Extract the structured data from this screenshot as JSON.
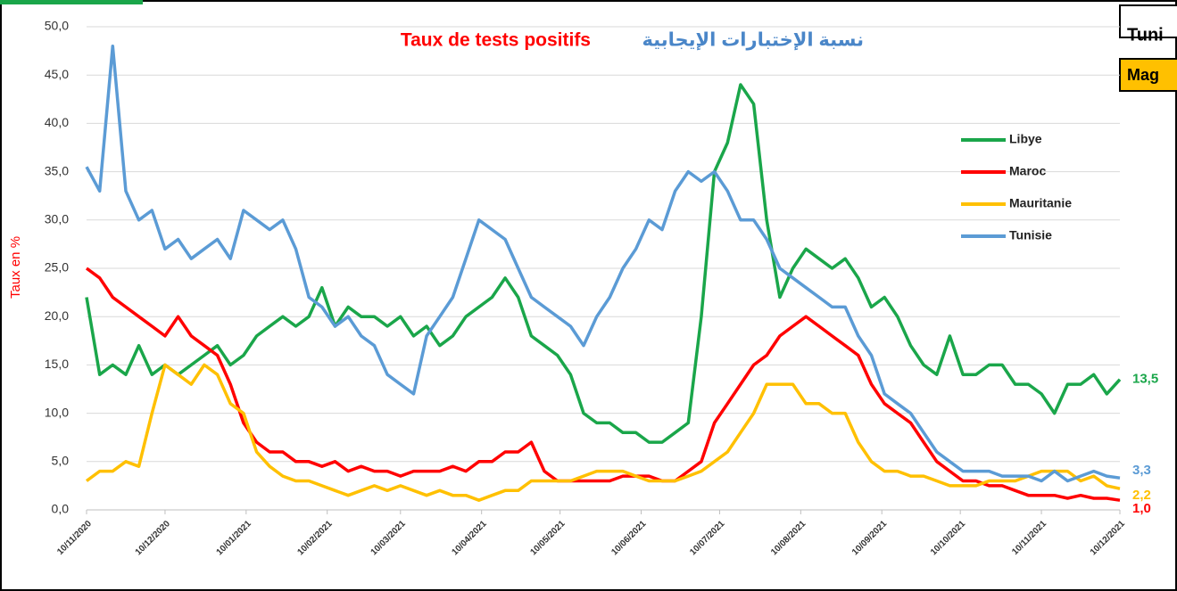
{
  "chart_data": {
    "type": "line",
    "title": "Taux de tests positifs",
    "subtitle": "نسبة الإختبارات الإيجابية",
    "y_label": "Taux en %",
    "corner_texts": [
      "Tuni",
      "Mag"
    ],
    "x": [
      "10/11/2020",
      "15/11/2020",
      "20/11/2020",
      "25/11/2020",
      "30/11/2020",
      "05/12/2020",
      "10/12/2020",
      "15/12/2020",
      "20/12/2020",
      "25/12/2020",
      "30/12/2020",
      "04/01/2021",
      "09/01/2021",
      "14/01/2021",
      "19/01/2021",
      "24/01/2021",
      "29/01/2021",
      "03/02/2021",
      "08/02/2021",
      "13/02/2021",
      "18/02/2021",
      "23/02/2021",
      "28/02/2021",
      "05/03/2021",
      "10/03/2021",
      "15/03/2021",
      "20/03/2021",
      "25/03/2021",
      "30/03/2021",
      "04/04/2021",
      "09/04/2021",
      "14/04/2021",
      "19/04/2021",
      "24/04/2021",
      "29/04/2021",
      "04/05/2021",
      "09/05/2021",
      "14/05/2021",
      "19/05/2021",
      "24/05/2021",
      "29/05/2021",
      "03/06/2021",
      "08/06/2021",
      "13/06/2021",
      "18/06/2021",
      "23/06/2021",
      "28/06/2021",
      "03/07/2021",
      "08/07/2021",
      "13/07/2021",
      "18/07/2021",
      "23/07/2021",
      "28/07/2021",
      "02/08/2021",
      "07/08/2021",
      "12/08/2021",
      "17/08/2021",
      "22/08/2021",
      "27/08/2021",
      "01/09/2021",
      "06/09/2021",
      "11/09/2021",
      "16/09/2021",
      "21/09/2021",
      "26/09/2021",
      "01/10/2021",
      "06/10/2021",
      "11/10/2021",
      "16/10/2021",
      "21/10/2021",
      "26/10/2021",
      "31/10/2021",
      "05/11/2021",
      "10/11/2021",
      "15/11/2021",
      "20/11/2021",
      "25/11/2021",
      "30/11/2021",
      "05/12/2021",
      "10/12/2021"
    ],
    "series": [
      {
        "name": "Libye",
        "color": "#1aa64a",
        "end_label": "13,5",
        "values": [
          22,
          14,
          15,
          14,
          17,
          14,
          15,
          14,
          15,
          16,
          17,
          15,
          16,
          18,
          19,
          20,
          19,
          20,
          23,
          19,
          21,
          20,
          20,
          19,
          20,
          18,
          19,
          17,
          18,
          20,
          21,
          22,
          24,
          22,
          18,
          17,
          16,
          14,
          10,
          9,
          9,
          8,
          8,
          7,
          7,
          8,
          9,
          20,
          35,
          38,
          44,
          42,
          30,
          22,
          25,
          27,
          26,
          25,
          26,
          24,
          21,
          22,
          20,
          17,
          15,
          14,
          18,
          14,
          14,
          15,
          15,
          13,
          13,
          12,
          10,
          13,
          13,
          14,
          12,
          13.5
        ]
      },
      {
        "name": "Maroc",
        "color": "#ff0000",
        "end_label": "1,0",
        "values": [
          25,
          24,
          22,
          21,
          20,
          19,
          18,
          20,
          18,
          17,
          16,
          13,
          9,
          7,
          6,
          6,
          5,
          5,
          4.5,
          5,
          4,
          4.5,
          4,
          4,
          3.5,
          4,
          4,
          4,
          4.5,
          4,
          5,
          5,
          6,
          6,
          7,
          4,
          3,
          3,
          3,
          3,
          3,
          3.5,
          3.5,
          3.5,
          3,
          3,
          4,
          5,
          9,
          11,
          13,
          15,
          16,
          18,
          19,
          20,
          19,
          18,
          17,
          16,
          13,
          11,
          10,
          9,
          7,
          5,
          4,
          3,
          3,
          2.5,
          2.5,
          2,
          1.5,
          1.5,
          1.5,
          1.2,
          1.5,
          1.2,
          1.2,
          1.0
        ]
      },
      {
        "name": "Mauritanie",
        "color": "#ffc000",
        "end_label": "2,2",
        "values": [
          3,
          4,
          4,
          5,
          4.5,
          10,
          15,
          14,
          13,
          15,
          14,
          11,
          10,
          6,
          4.5,
          3.5,
          3,
          3,
          2.5,
          2,
          1.5,
          2,
          2.5,
          2,
          2.5,
          2,
          1.5,
          2,
          1.5,
          1.5,
          1,
          1.5,
          2,
          2,
          3,
          3,
          3,
          3,
          3.5,
          4,
          4,
          4,
          3.5,
          3,
          3,
          3,
          3.5,
          4,
          5,
          6,
          8,
          10,
          13,
          13,
          13,
          11,
          11,
          10,
          10,
          7,
          5,
          4,
          4,
          3.5,
          3.5,
          3,
          2.5,
          2.5,
          2.5,
          3,
          3,
          3,
          3.5,
          4,
          4,
          4,
          3,
          3.5,
          2.5,
          2.2
        ]
      },
      {
        "name": "Tunisie",
        "color": "#5b9bd5",
        "end_label": "3,3",
        "values": [
          35.5,
          33,
          48,
          33,
          30,
          31,
          27,
          28,
          26,
          27,
          28,
          26,
          31,
          30,
          29,
          30,
          27,
          22,
          21,
          19,
          20,
          18,
          17,
          14,
          13,
          12,
          18,
          20,
          22,
          26,
          30,
          29,
          28,
          25,
          22,
          21,
          20,
          19,
          17,
          20,
          22,
          25,
          27,
          30,
          29,
          33,
          35,
          34,
          35,
          33,
          30,
          30,
          28,
          25,
          24,
          23,
          22,
          21,
          21,
          18,
          16,
          12,
          11,
          10,
          8,
          6,
          5,
          4,
          4,
          4,
          3.5,
          3.5,
          3.5,
          3,
          4,
          3,
          3.5,
          4,
          3.5,
          3.3
        ]
      }
    ],
    "xlim": [
      "10/11/2020",
      "10/12/2021"
    ],
    "xticks": [
      "10/11/2020",
      "10/12/2020",
      "10/01/2021",
      "10/02/2021",
      "10/03/2021",
      "10/04/2021",
      "10/05/2021",
      "10/06/2021",
      "10/07/2021",
      "10/08/2021",
      "10/09/2021",
      "10/10/2021",
      "10/11/2021",
      "10/12/2021"
    ],
    "ylim": [
      0,
      50
    ],
    "yticks": [
      {
        "value": 0,
        "label": "0,0"
      },
      {
        "value": 5,
        "label": "5,0"
      },
      {
        "value": 10,
        "label": "10,0"
      },
      {
        "value": 15,
        "label": "15,0"
      },
      {
        "value": 20,
        "label": "20,0"
      },
      {
        "value": 25,
        "label": "25,0"
      },
      {
        "value": 30,
        "label": "30,0"
      },
      {
        "value": 35,
        "label": "35,0"
      },
      {
        "value": 40,
        "label": "40,0"
      },
      {
        "value": 45,
        "label": "45,0"
      },
      {
        "value": 50,
        "label": "50,0"
      }
    ],
    "grid": true,
    "legend": "upper right"
  }
}
